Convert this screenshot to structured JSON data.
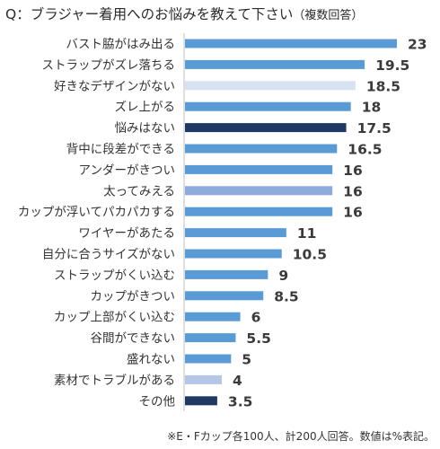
{
  "question": {
    "main": "Q：ブラジャー着用へのお悩みを教えて下さい",
    "sub": "（複数回答）"
  },
  "footnote": "※E・Fカップ各100人、計200人回答。数値は%表記。",
  "colors": {
    "default_bar": "#5b9bd5",
    "light_bar": "#d6e1f2",
    "dark_bar": "#1f3864",
    "mid_bar": "#8faadc",
    "pale_bar": "#b4c7e7",
    "axis": "#bfbfbf"
  },
  "chart_data": {
    "type": "bar",
    "orientation": "horizontal",
    "categories": [
      "バスト脇がはみ出る",
      "ストラップがズレ落ちる",
      "好きなデザインがない",
      "ズレ上がる",
      "悩みはない",
      "背中に段差ができる",
      "アンダーがきつい",
      "太ってみえる",
      "カップが浮いてパカパカする",
      "ワイヤーがあたる",
      "自分に合うサイズがない",
      "ストラップがくい込む",
      "カップがきつい",
      "カップ上部がくい込む",
      "谷間ができない",
      "盛れない",
      "素材でトラブルがある",
      "その他"
    ],
    "values": [
      23,
      19.5,
      18.5,
      18,
      17.5,
      16.5,
      16,
      16,
      16,
      11,
      10.5,
      9,
      8.5,
      6,
      5.5,
      5,
      4,
      3.5
    ],
    "value_labels": [
      "23",
      "19.5",
      "18.5",
      "18",
      "17.5",
      "16.5",
      "16",
      "16",
      "16",
      "11",
      "10.5",
      "9",
      "8.5",
      "6",
      "5.5",
      "5",
      "4",
      "3.5"
    ],
    "bar_colors": [
      "default",
      "default",
      "light",
      "default",
      "dark",
      "default",
      "default",
      "mid",
      "default",
      "default",
      "default",
      "default",
      "default",
      "default",
      "default",
      "default",
      "pale",
      "dark"
    ],
    "xlim": [
      0,
      25
    ],
    "grid": false,
    "legend": false
  }
}
